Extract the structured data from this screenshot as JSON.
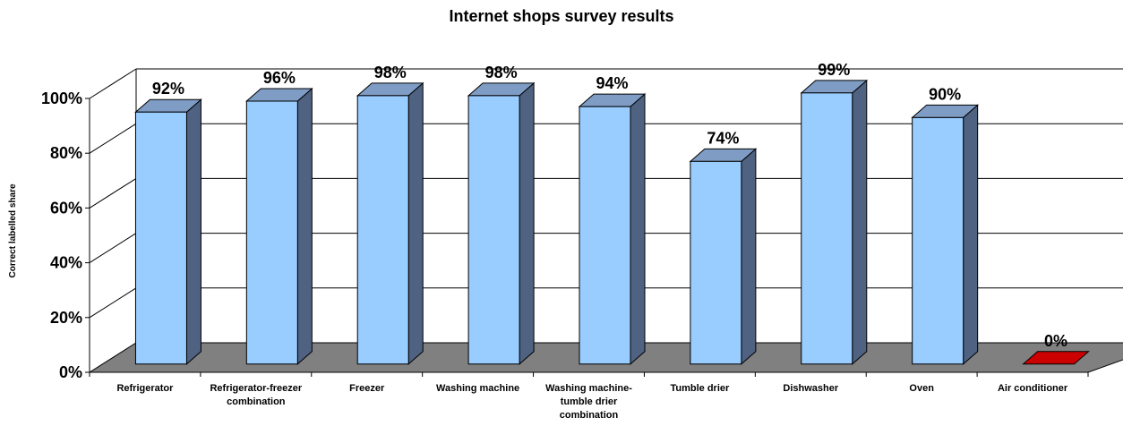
{
  "chart_data": {
    "type": "bar",
    "title": "Internet shops survey results",
    "ylabel": "Correct labelled share",
    "xlabel": "",
    "ylim": [
      0,
      100
    ],
    "yticks": [
      "0%",
      "20%",
      "40%",
      "60%",
      "80%",
      "100%"
    ],
    "grid": true,
    "style": "3d",
    "categories": [
      [
        "Refrigerator"
      ],
      [
        "Refrigerator-freezer",
        "combination"
      ],
      [
        "Freezer"
      ],
      [
        "Washing machine"
      ],
      [
        "Washing machine-",
        "tumble drier",
        "combination"
      ],
      [
        "Tumble drier"
      ],
      [
        "Dishwasher"
      ],
      [
        "Oven"
      ],
      [
        "Air conditioner"
      ]
    ],
    "values": [
      92,
      96,
      98,
      98,
      94,
      74,
      99,
      90,
      0
    ],
    "data_labels": [
      "92%",
      "96%",
      "98%",
      "98%",
      "94%",
      "74%",
      "99%",
      "90%",
      "0%"
    ],
    "colors": {
      "bar_front": "#99CCFF",
      "bar_side": "#4F6282",
      "bar_top": "#7E9CC4",
      "highlight_front": "#CC0000",
      "floor": "#808080",
      "grid": "#000000"
    },
    "highlight_index": 8
  }
}
